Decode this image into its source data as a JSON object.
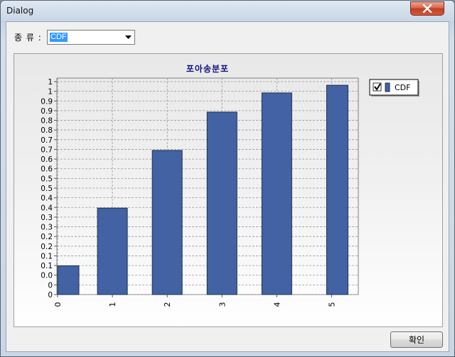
{
  "window": {
    "title": "Dialog",
    "close_icon": "close-icon",
    "close_color": "#c23d1f"
  },
  "controls": {
    "type_label": "종 류 :",
    "type_select": {
      "selected": "CDF",
      "arrow_icon": "chevron-down-icon"
    }
  },
  "chart_data": {
    "type": "bar",
    "title": "포아송분포",
    "categories": [
      "0",
      "1",
      "2",
      "3",
      "4",
      "5"
    ],
    "series": [
      {
        "name": "CDF",
        "color": "#4262a4",
        "values": [
          0.135,
          0.406,
          0.677,
          0.857,
          0.947,
          0.983
        ]
      }
    ],
    "ylim": [
      0,
      1
    ],
    "yticks": [
      "0",
      "0",
      "0.0",
      "0.1",
      "0.1",
      "0.2",
      "0.2",
      "0.3",
      "0.3",
      "0.4",
      "0.4",
      "0.5",
      "0.5",
      "0.6",
      "0.6",
      "0.7",
      "0.7",
      "0.8",
      "0.8",
      "0.9",
      "0.9",
      "1",
      "1"
    ],
    "grid": true,
    "legend": {
      "placement": "top-right",
      "checked": true,
      "label": "CDF"
    }
  },
  "footer": {
    "ok_label": "확인"
  }
}
